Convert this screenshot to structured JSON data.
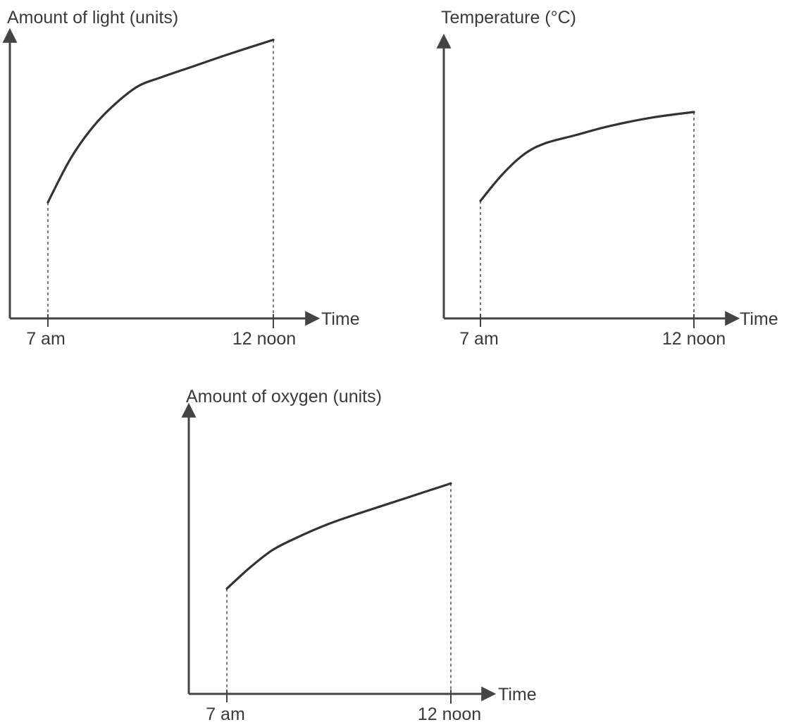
{
  "chart_data": [
    {
      "type": "line",
      "ylabel": "Amount of light (units)",
      "xlabel": "Time",
      "x_tick_labels": [
        "7 am",
        "12 noon"
      ],
      "x": [
        0,
        0.1,
        0.2,
        0.3,
        0.4,
        0.5,
        0.65,
        0.8,
        1.0
      ],
      "values": [
        0.4,
        0.55,
        0.66,
        0.74,
        0.8,
        0.83,
        0.87,
        0.91,
        0.96
      ],
      "ylim": [
        0,
        1
      ],
      "grid": false
    },
    {
      "type": "line",
      "ylabel": "Temperature (°C)",
      "xlabel": "Time",
      "x_tick_labels": [
        "7 am",
        "12 noon"
      ],
      "x": [
        0,
        0.1,
        0.2,
        0.3,
        0.45,
        0.6,
        0.8,
        1.0
      ],
      "values": [
        0.41,
        0.5,
        0.57,
        0.61,
        0.64,
        0.67,
        0.7,
        0.72
      ],
      "ylim": [
        0,
        1
      ],
      "grid": false
    },
    {
      "type": "line",
      "ylabel": "Amount of oxygen (units)",
      "xlabel": "Time",
      "x_tick_labels": [
        "7 am",
        "12 noon"
      ],
      "x": [
        0,
        0.1,
        0.2,
        0.3,
        0.45,
        0.6,
        0.8,
        1.0
      ],
      "values": [
        0.36,
        0.43,
        0.49,
        0.53,
        0.58,
        0.62,
        0.67,
        0.72
      ],
      "ylim": [
        0,
        1
      ],
      "grid": false
    }
  ]
}
